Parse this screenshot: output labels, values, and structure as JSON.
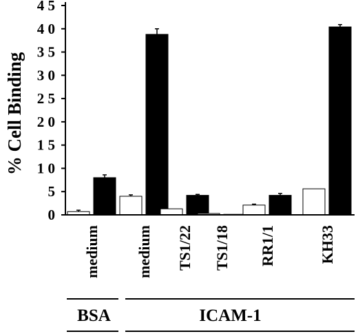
{
  "chart_data": {
    "type": "bar",
    "title": "",
    "xlabel": "",
    "ylabel": "% Cell Binding",
    "ylim": [
      0,
      45
    ],
    "yticks": [
      "0",
      "5",
      "1 0",
      "1 5",
      "2 0",
      "2 5",
      "3 0",
      "3 5",
      "4 0",
      "4 5"
    ],
    "ytick_values": [
      0,
      5,
      10,
      15,
      20,
      25,
      30,
      35,
      40,
      45
    ],
    "categories": [
      "medium",
      "medium",
      "TS1/22",
      "TS1/18",
      "RR1/1",
      "KH33"
    ],
    "series": [
      {
        "values": [
          0.7,
          4.0,
          1.3,
          0.3,
          2.1,
          5.6
        ],
        "errors": [
          0.3,
          0.3,
          0.1,
          0.1,
          0.2,
          0.1
        ]
      },
      {
        "values": [
          8.0,
          38.8,
          4.2,
          0.1,
          4.2,
          40.4
        ],
        "errors": [
          0.6,
          1.2,
          0.2,
          0.1,
          0.4,
          0.5
        ]
      }
    ],
    "series_colors": [
      "#ffffff",
      "#000000"
    ],
    "groups": [
      {
        "label": "BSA",
        "categories": [
          0
        ]
      },
      {
        "label": "ICAM-1",
        "categories": [
          1,
          2,
          3,
          4,
          5
        ]
      }
    ],
    "grid": false,
    "legend": "none"
  }
}
